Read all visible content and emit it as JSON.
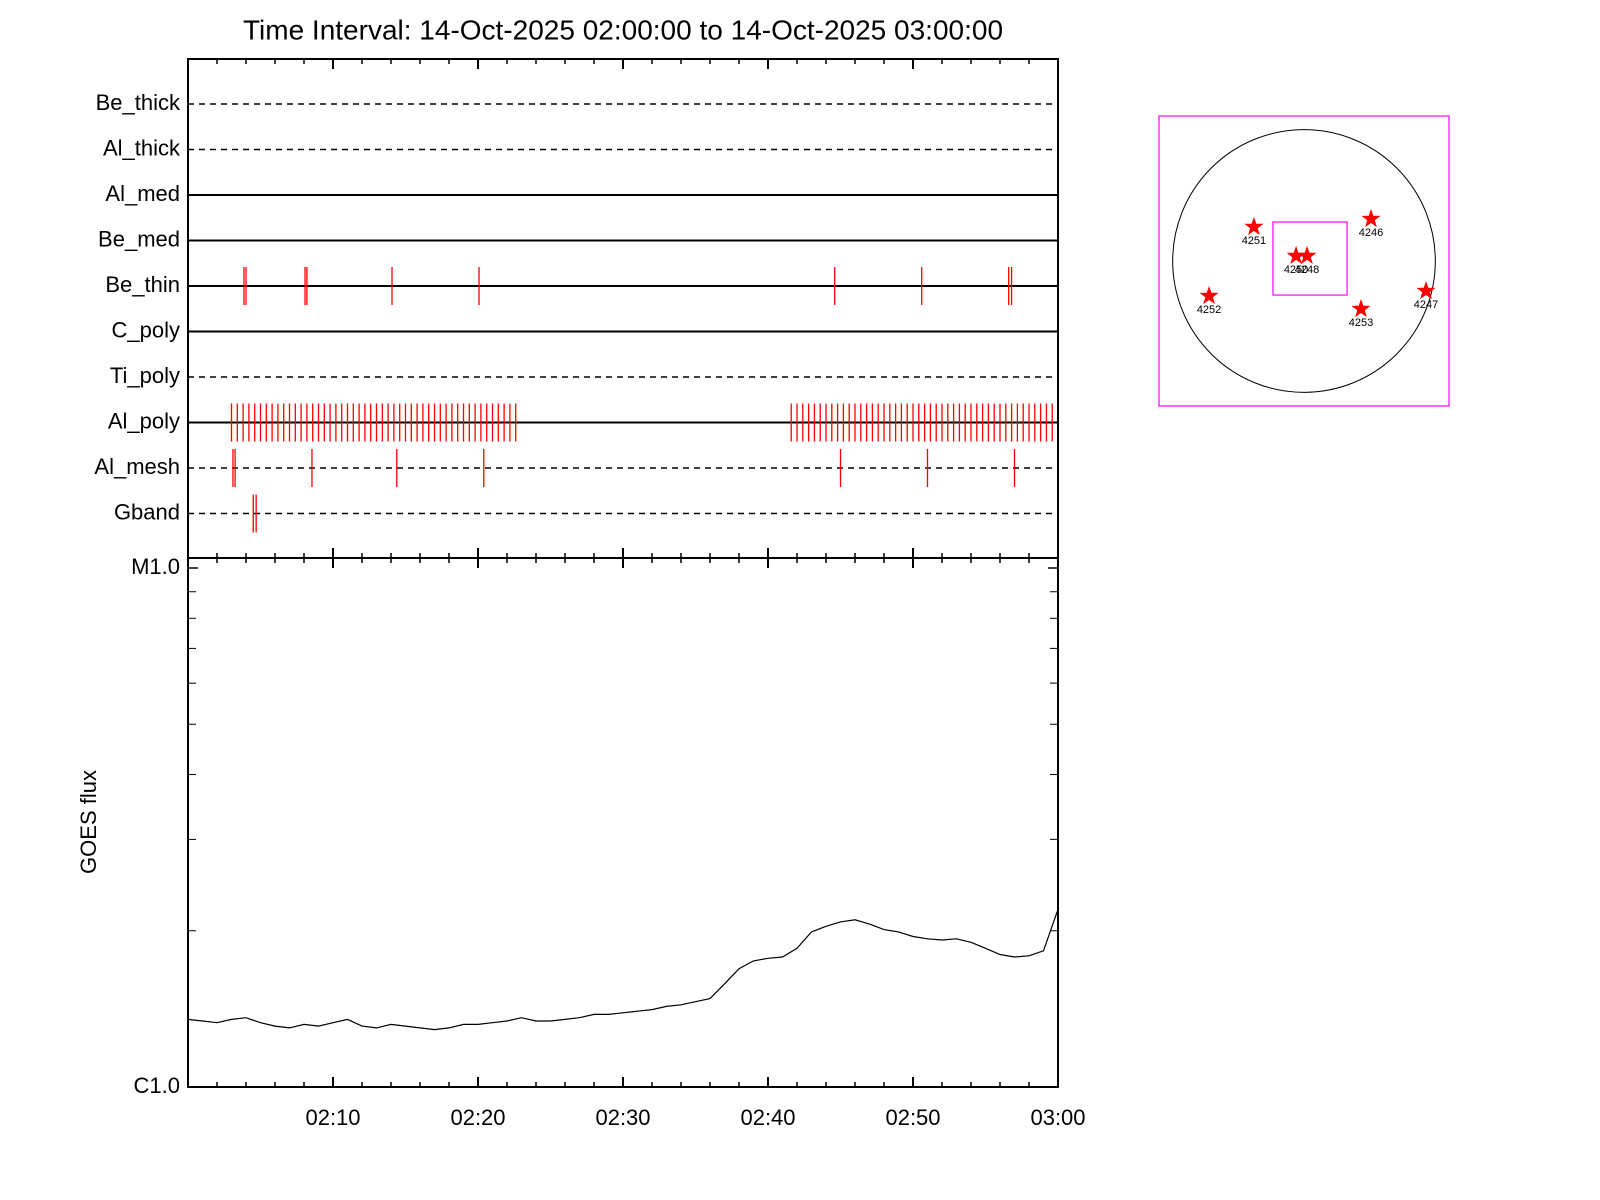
{
  "chart_data": [
    {
      "type": "timeline",
      "title": "Time Interval: 14-Oct-2025 02:00:00 to 14-Oct-2025 03:00:00",
      "xlim": [
        0,
        60
      ],
      "xticks": [
        0,
        10,
        20,
        30,
        40,
        50,
        60
      ],
      "color": "#ff0000",
      "rows": [
        {
          "name": "Be_thick",
          "linestyle": "dashed",
          "events": []
        },
        {
          "name": "Al_thick",
          "linestyle": "dashed",
          "events": []
        },
        {
          "name": "Al_med",
          "linestyle": "solid",
          "events": []
        },
        {
          "name": "Be_med",
          "linestyle": "solid",
          "events": []
        },
        {
          "name": "Be_thin",
          "linestyle": "solid",
          "events": [
            3.86,
            4.0,
            8.07,
            8.2,
            14.07,
            20.07,
            44.6,
            50.6,
            56.6,
            56.8
          ]
        },
        {
          "name": "C_poly",
          "linestyle": "solid",
          "events": []
        },
        {
          "name": "Ti_poly",
          "linestyle": "dashed",
          "events": []
        },
        {
          "name": "Al_poly",
          "linestyle": "solid",
          "events": [
            3.0,
            3.4,
            3.8,
            4.2,
            4.6,
            5.0,
            5.4,
            5.8,
            6.2,
            6.6,
            7.0,
            7.4,
            7.8,
            8.2,
            8.6,
            9.0,
            9.4,
            9.8,
            10.2,
            10.6,
            11.0,
            11.4,
            11.8,
            12.2,
            12.6,
            13.0,
            13.4,
            13.8,
            14.2,
            14.6,
            15.0,
            15.4,
            15.8,
            16.2,
            16.6,
            17.0,
            17.4,
            17.8,
            18.2,
            18.6,
            19.0,
            19.4,
            19.8,
            20.2,
            20.6,
            21.0,
            21.4,
            21.8,
            22.2,
            22.6,
            41.6,
            42.0,
            42.4,
            42.8,
            43.2,
            43.6,
            44.0,
            44.4,
            44.8,
            45.2,
            45.6,
            46.0,
            46.4,
            46.8,
            47.2,
            47.6,
            48.0,
            48.4,
            48.8,
            49.2,
            49.6,
            50.0,
            50.4,
            50.8,
            51.2,
            51.6,
            52.0,
            52.4,
            52.8,
            53.2,
            53.6,
            54.0,
            54.4,
            54.8,
            55.2,
            55.6,
            56.0,
            56.4,
            56.8,
            57.2,
            57.6,
            58.0,
            58.4,
            58.8,
            59.2,
            59.6
          ]
        },
        {
          "name": "Al_mesh",
          "linestyle": "dashed",
          "events": [
            3.1,
            3.25,
            8.55,
            14.4,
            20.4,
            45.0,
            51.0,
            57.0
          ]
        },
        {
          "name": "Gband",
          "linestyle": "dashed",
          "events": [
            4.5,
            4.7
          ]
        }
      ]
    },
    {
      "type": "line",
      "ylabel": "GOES flux",
      "log": true,
      "color": "#000000",
      "xlim": [
        0,
        60
      ],
      "xticks": [
        {
          "value": 10,
          "label": "02:10"
        },
        {
          "value": 20,
          "label": "02:20"
        },
        {
          "value": 30,
          "label": "02:30"
        },
        {
          "value": 40,
          "label": "02:40"
        },
        {
          "value": 50,
          "label": "02:50"
        },
        {
          "value": 60,
          "label": "03:00"
        }
      ],
      "ylim": [
        1e-06,
        1e-05
      ],
      "yticks": [
        {
          "value": 1e-06,
          "label": "C1.0"
        },
        {
          "value": 1e-05,
          "label": "M1.0"
        }
      ],
      "yminorticks": [
        2e-06,
        3e-06,
        4e-06,
        5e-06,
        6e-06,
        7e-06,
        8e-06,
        9e-06
      ],
      "x": [
        0,
        1,
        2,
        3,
        4,
        5,
        6,
        7,
        8,
        9,
        10,
        11,
        12,
        13,
        14,
        15,
        16,
        17,
        18,
        19,
        20,
        21,
        22,
        23,
        24,
        25,
        26,
        27,
        28,
        29,
        30,
        31,
        32,
        33,
        34,
        35,
        36,
        37,
        38,
        39,
        40,
        41,
        42,
        43,
        44,
        45,
        46,
        47,
        48,
        49,
        50,
        51,
        52,
        53,
        54,
        55,
        56,
        57,
        58,
        59,
        60
      ],
      "values": [
        1.35e-06,
        1.34e-06,
        1.33e-06,
        1.35e-06,
        1.36e-06,
        1.33e-06,
        1.31e-06,
        1.3e-06,
        1.32e-06,
        1.31e-06,
        1.33e-06,
        1.35e-06,
        1.31e-06,
        1.3e-06,
        1.32e-06,
        1.31e-06,
        1.3e-06,
        1.29e-06,
        1.3e-06,
        1.32e-06,
        1.32e-06,
        1.33e-06,
        1.34e-06,
        1.36e-06,
        1.34e-06,
        1.34e-06,
        1.35e-06,
        1.36e-06,
        1.38e-06,
        1.38e-06,
        1.39e-06,
        1.4e-06,
        1.41e-06,
        1.43e-06,
        1.44e-06,
        1.46e-06,
        1.48e-06,
        1.58e-06,
        1.69e-06,
        1.75e-06,
        1.77e-06,
        1.78e-06,
        1.85e-06,
        1.99e-06,
        2.04e-06,
        2.08e-06,
        2.1e-06,
        2.06e-06,
        2.01e-06,
        1.99e-06,
        1.95e-06,
        1.93e-06,
        1.92e-06,
        1.93e-06,
        1.9e-06,
        1.85e-06,
        1.8e-06,
        1.78e-06,
        1.79e-06,
        1.83e-06,
        2.2e-06
      ]
    },
    {
      "type": "disk",
      "xlim": [
        -1060,
        1060
      ],
      "ylim": [
        -1060,
        1060
      ],
      "disk_radius": 960,
      "color": "#ff0000",
      "frame_color": "#ff00ff",
      "fov": {
        "x": [
          -227,
          315
        ],
        "y": [
          -249,
          285
        ]
      },
      "labels": [
        "4251",
        "4246",
        "4250",
        "4248",
        "4252",
        "4253",
        "4247"
      ],
      "x": [
        -366,
        490,
        -58,
        22,
        -694,
        417,
        892
      ],
      "y": [
        249,
        307,
        37,
        37,
        -256,
        -351,
        -219
      ]
    }
  ]
}
